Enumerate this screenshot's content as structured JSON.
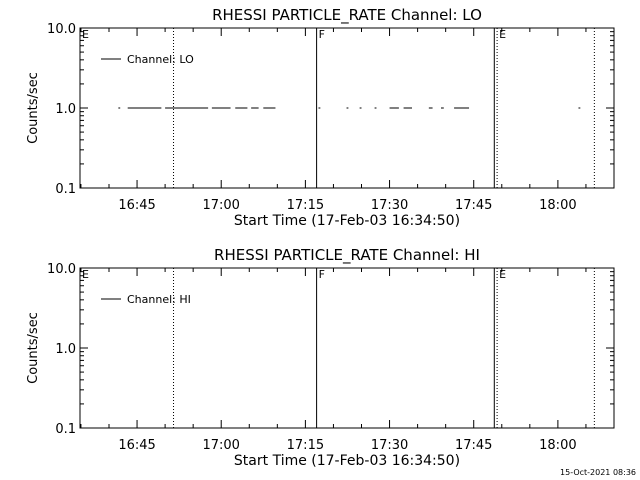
{
  "footer_timestamp": "15-Oct-2021 08:36",
  "chart_data": [
    {
      "type": "line",
      "title": "RHESSI PARTICLE_RATE Channel: LO",
      "xlabel": "Start Time (17-Feb-03 16:34:50)",
      "ylabel": "Counts/sec",
      "yscale": "log",
      "ylim": [
        0.1,
        10.0
      ],
      "y_ticks": [
        {
          "value": 0.1,
          "label": "0.1"
        },
        {
          "value": 1.0,
          "label": "1.0"
        },
        {
          "value": 10.0,
          "label": "10.0"
        }
      ],
      "xlim": [
        "16:34:50",
        "18:10:00"
      ],
      "x_ticks": [
        "16:45",
        "17:00",
        "17:15",
        "17:30",
        "17:45",
        "18:00"
      ],
      "legend": {
        "position": "top-left",
        "entries": [
          "Channel: LO"
        ]
      },
      "vertical_markers": [
        {
          "time": "16:34:50",
          "style": "dotted",
          "label": "E"
        },
        {
          "time": "16:51:30",
          "style": "dotted",
          "label": ""
        },
        {
          "time": "17:17:00",
          "style": "solid",
          "label": "F"
        },
        {
          "time": "17:48:40",
          "style": "solid",
          "label": ""
        },
        {
          "time": "17:49:10",
          "style": "dotted",
          "label": "E"
        },
        {
          "time": "18:06:30",
          "style": "dotted",
          "label": ""
        }
      ],
      "series": [
        {
          "name": "Channel: LO",
          "value": 1.0,
          "segments": [
            [
              "16:41:40",
              "16:42:00"
            ],
            [
              "16:43:20",
              "16:49:20"
            ],
            [
              "16:50:00",
              "16:57:40"
            ],
            [
              "16:58:20",
              "17:01:40"
            ],
            [
              "17:02:30",
              "17:04:40"
            ],
            [
              "17:05:20",
              "17:06:40"
            ],
            [
              "17:07:30",
              "17:09:40"
            ],
            [
              "17:17:20",
              "17:17:40"
            ],
            [
              "17:22:20",
              "17:22:40"
            ],
            [
              "17:24:40",
              "17:25:00"
            ],
            [
              "17:27:20",
              "17:27:40"
            ],
            [
              "17:30:00",
              "17:31:40"
            ],
            [
              "17:32:30",
              "17:34:00"
            ],
            [
              "17:37:00",
              "17:37:40"
            ],
            [
              "17:39:10",
              "17:39:40"
            ],
            [
              "17:41:30",
              "17:44:10"
            ],
            [
              "18:03:40",
              "18:04:00"
            ]
          ]
        }
      ]
    },
    {
      "type": "line",
      "title": "RHESSI PARTICLE_RATE Channel: HI",
      "xlabel": "Start Time (17-Feb-03 16:34:50)",
      "ylabel": "Counts/sec",
      "yscale": "log",
      "ylim": [
        0.1,
        10.0
      ],
      "y_ticks": [
        {
          "value": 0.1,
          "label": "0.1"
        },
        {
          "value": 1.0,
          "label": "1.0"
        },
        {
          "value": 10.0,
          "label": "10.0"
        }
      ],
      "xlim": [
        "16:34:50",
        "18:10:00"
      ],
      "x_ticks": [
        "16:45",
        "17:00",
        "17:15",
        "17:30",
        "17:45",
        "18:00"
      ],
      "legend": {
        "position": "top-left",
        "entries": [
          "Channel: HI"
        ]
      },
      "vertical_markers": [
        {
          "time": "16:34:50",
          "style": "dotted",
          "label": "E"
        },
        {
          "time": "16:51:30",
          "style": "dotted",
          "label": ""
        },
        {
          "time": "17:17:00",
          "style": "solid",
          "label": "F"
        },
        {
          "time": "17:48:40",
          "style": "solid",
          "label": ""
        },
        {
          "time": "17:49:10",
          "style": "dotted",
          "label": "E"
        },
        {
          "time": "18:06:30",
          "style": "dotted",
          "label": ""
        }
      ],
      "series": [
        {
          "name": "Channel: HI",
          "value": 1.0,
          "segments": []
        }
      ]
    }
  ]
}
